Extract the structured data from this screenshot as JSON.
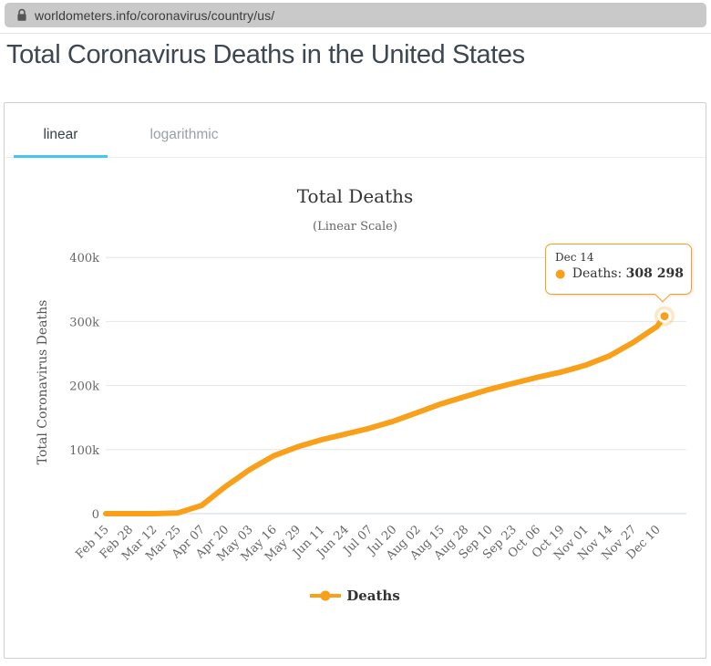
{
  "browser": {
    "url": "worldometers.info/coronavirus/country/us/"
  },
  "page": {
    "title": "Total Coronavirus Deaths in the United States"
  },
  "tabs": [
    {
      "label": "linear",
      "active": true
    },
    {
      "label": "logarithmic",
      "active": false
    }
  ],
  "colors": {
    "series_orange": "#F9A01B",
    "tab_underline": "#41C7F0",
    "gridline": "#e6e6e6",
    "axis_line": "#ccd6eb",
    "tick_text": "#666666"
  },
  "chart_data": {
    "type": "line",
    "title": "Total Deaths",
    "subtitle": "(Linear Scale)",
    "ylabel": "Total Coronavirus Deaths",
    "xlabel": "",
    "ylim": [
      0,
      400000
    ],
    "ytick_labels": [
      "0",
      "100k",
      "200k",
      "300k",
      "400k"
    ],
    "grid": true,
    "legend_position": "bottom",
    "categories": [
      "Feb 15",
      "Feb 28",
      "Mar 12",
      "Mar 25",
      "Apr 07",
      "Apr 20",
      "May 03",
      "May 16",
      "May 29",
      "Jun 11",
      "Jun 24",
      "Jul 07",
      "Jul 20",
      "Aug 02",
      "Aug 15",
      "Aug 28",
      "Sep 10",
      "Sep 23",
      "Oct 06",
      "Oct 19",
      "Nov 01",
      "Nov 14",
      "Nov 27",
      "Dec 10"
    ],
    "series": [
      {
        "name": "Deaths",
        "color": "#F9A01B",
        "points": [
          {
            "date": "Feb 15",
            "value": 0
          },
          {
            "date": "Feb 28",
            "value": 1
          },
          {
            "date": "Mar 12",
            "value": 41
          },
          {
            "date": "Mar 25",
            "value": 942
          },
          {
            "date": "Apr 07",
            "value": 12857
          },
          {
            "date": "Apr 20",
            "value": 42514
          },
          {
            "date": "May 03",
            "value": 68598
          },
          {
            "date": "May 16",
            "value": 90113
          },
          {
            "date": "May 29",
            "value": 104319
          },
          {
            "date": "Jun 11",
            "value": 115436
          },
          {
            "date": "Jun 24",
            "value": 124282
          },
          {
            "date": "Jul 07",
            "value": 133291
          },
          {
            "date": "Jul 20",
            "value": 144305
          },
          {
            "date": "Aug 02",
            "value": 157898
          },
          {
            "date": "Aug 15",
            "value": 171535
          },
          {
            "date": "Aug 28",
            "value": 182835
          },
          {
            "date": "Sep 10",
            "value": 194087
          },
          {
            "date": "Sep 23",
            "value": 203571
          },
          {
            "date": "Oct 06",
            "value": 212789
          },
          {
            "date": "Oct 19",
            "value": 221083
          },
          {
            "date": "Nov 01",
            "value": 231674
          },
          {
            "date": "Nov 14",
            "value": 246108
          },
          {
            "date": "Nov 27",
            "value": 267302
          },
          {
            "date": "Dec 10",
            "value": 292376
          },
          {
            "date": "Dec 14",
            "value": 308298
          }
        ]
      }
    ],
    "tooltip": {
      "date": "Dec 14",
      "label": "Deaths:",
      "value": "308 298",
      "bullet": "●"
    },
    "legend": {
      "label": "Deaths"
    }
  }
}
